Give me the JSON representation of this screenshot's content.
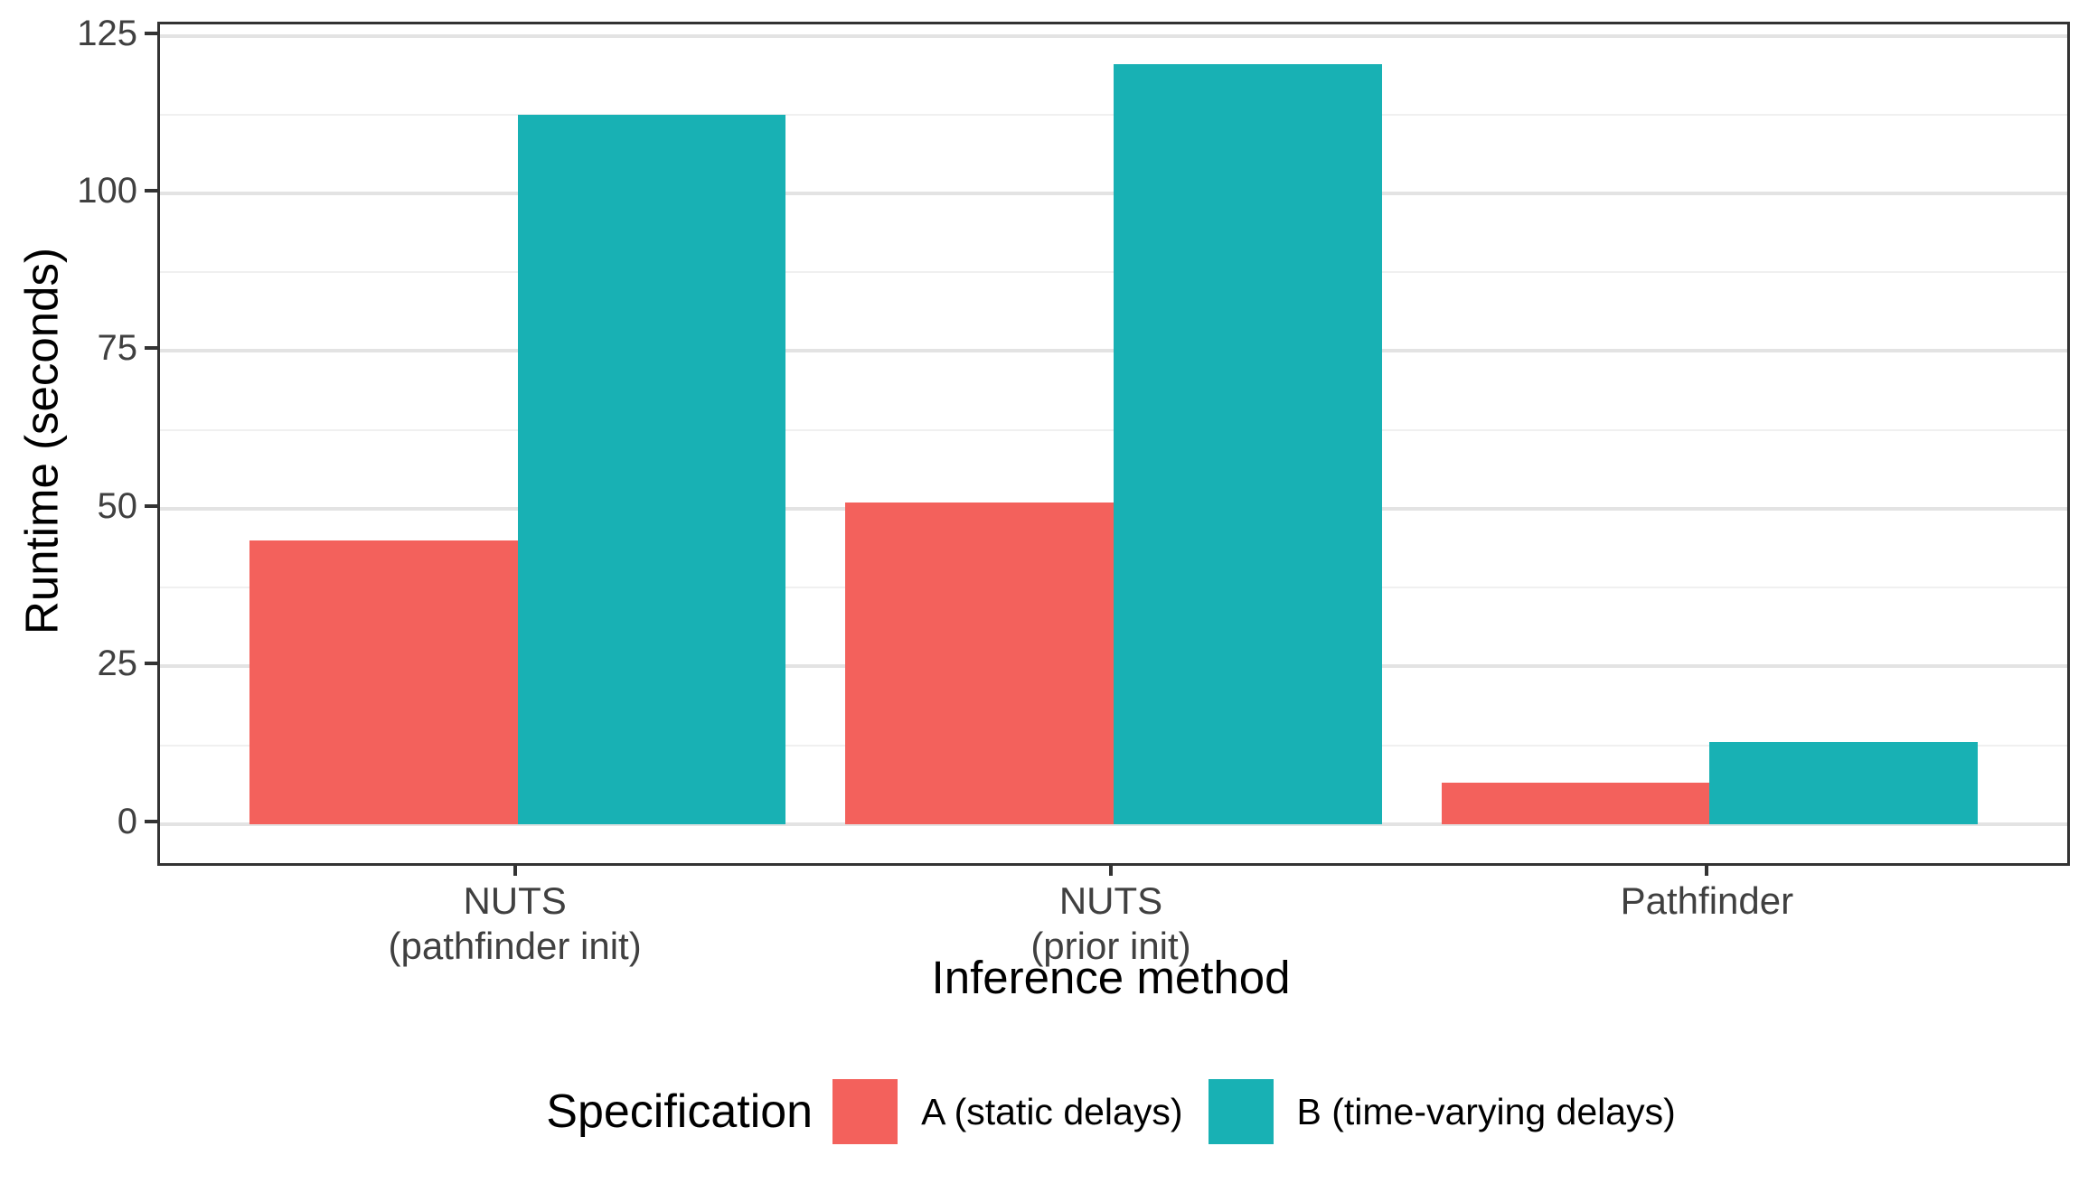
{
  "chart_data": {
    "type": "bar",
    "bar_mode": "dodge",
    "title": "",
    "xlabel": "Inference method",
    "ylabel": "Runtime (seconds)",
    "categories": [
      {
        "label_lines": [
          "NUTS",
          "(pathfinder init)"
        ]
      },
      {
        "label_lines": [
          "NUTS",
          "(prior init)"
        ]
      },
      {
        "label_lines": [
          "Pathfinder"
        ]
      }
    ],
    "series": [
      {
        "name": "A (static delays)",
        "color": "#F3615C",
        "values": [
          45,
          51,
          6.5
        ]
      },
      {
        "name": "B (time-varying delays)",
        "color": "#18B1B4",
        "values": [
          112.5,
          120.5,
          13
        ]
      }
    ],
    "ylim": [
      -6.2,
      126.8
    ],
    "y_major_ticks": [
      0,
      25,
      50,
      75,
      100,
      125
    ],
    "y_minor_ticks": [
      12.5,
      37.5,
      62.5,
      87.5,
      112.5
    ],
    "grid": "major+minor",
    "legend_title": "Specification",
    "legend_position": "bottom"
  },
  "colors": {
    "series_a": "#F3615C",
    "series_b": "#18B1B4",
    "panel_border": "#333333",
    "grid_major": "#e3e3e3",
    "grid_minor": "#f0f0f0",
    "tick_text": "#404040",
    "title_text": "#000000",
    "background": "#ffffff"
  }
}
